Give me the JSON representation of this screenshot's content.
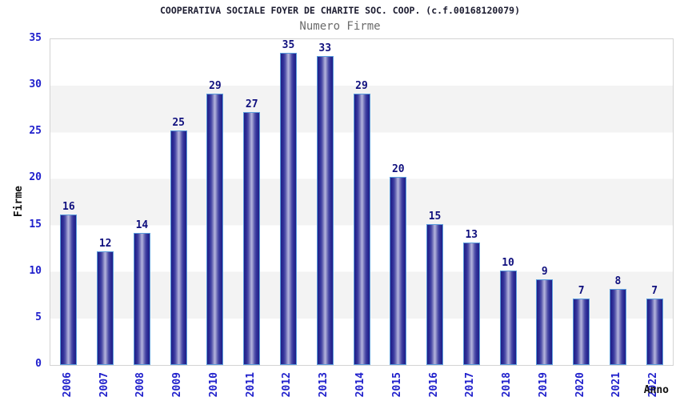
{
  "title": "COOPERATIVA SOCIALE FOYER DE CHARITE SOC. COOP. (c.f.00168120079)",
  "legend": "Numero Firme",
  "chart_data": {
    "type": "bar",
    "title": "COOPERATIVA SOCIALE FOYER DE CHARITE SOC. COOP. (c.f.00168120079)",
    "series_name": "Numero Firme",
    "categories": [
      "2006",
      "2007",
      "2008",
      "2009",
      "2010",
      "2011",
      "2012",
      "2013",
      "2014",
      "2015",
      "2016",
      "2017",
      "2018",
      "2019",
      "2020",
      "2021",
      "2022"
    ],
    "values": [
      16,
      12,
      14,
      25,
      29,
      27,
      35,
      33,
      29,
      20,
      15,
      13,
      10,
      9,
      7,
      8,
      7
    ],
    "xlabel": "Anno",
    "ylabel": "Firme",
    "ylim": [
      0,
      35
    ],
    "yticks": [
      0,
      5,
      10,
      15,
      20,
      25,
      30,
      35
    ],
    "legend_position": "top-center",
    "grid": "alternating horizontal bands every 5 units",
    "colors": {
      "tick_labels": "#2020cc",
      "value_labels": "#10107e",
      "bar_dark": "#1e1e86",
      "bar_light": "#b5b5de",
      "bar_border": "#5b9ddc",
      "band_gray": "#f3f3f3",
      "plot_border": "#d3d3d3",
      "legend_text": "#6b6b6b",
      "title_text": "#1c1c30"
    }
  }
}
